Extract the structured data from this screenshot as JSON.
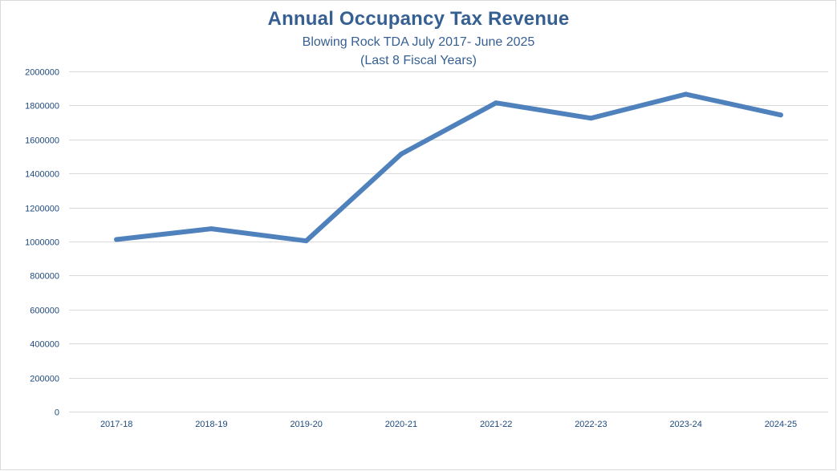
{
  "chart_data": {
    "type": "line",
    "title": "Annual Occupancy Tax Revenue",
    "subtitle": "Blowing Rock TDA July 2017- June 2025",
    "subtitle2": "(Last 8 Fiscal Years)",
    "xlabel": "",
    "ylabel": "",
    "categories": [
      "2017-18",
      "2018-19",
      "2019-20",
      "2020-21",
      "2021-22",
      "2022-23",
      "2023-24",
      "2024-25"
    ],
    "series": [
      {
        "name": "Occupancy Tax Revenue",
        "values": [
          1012000,
          1075000,
          1004000,
          1514000,
          1815000,
          1725000,
          1866000,
          1744000
        ],
        "color": "#4f81bd"
      }
    ],
    "ylim": [
      0,
      2000000
    ],
    "yticks": [
      "0",
      "200000",
      "400000",
      "600000",
      "800000",
      "1000000",
      "1200000",
      "1400000",
      "1600000",
      "1800000",
      "2000000"
    ],
    "ytick_values": [
      0,
      200000,
      400000,
      600000,
      800000,
      1000000,
      1200000,
      1400000,
      1600000,
      1800000,
      2000000
    ],
    "grid": true,
    "legend": "none",
    "colors": {
      "title": "#376092",
      "tick_labels": "#1f497d",
      "gridlines": "#d9d9d9",
      "line": "#4f81bd"
    }
  }
}
